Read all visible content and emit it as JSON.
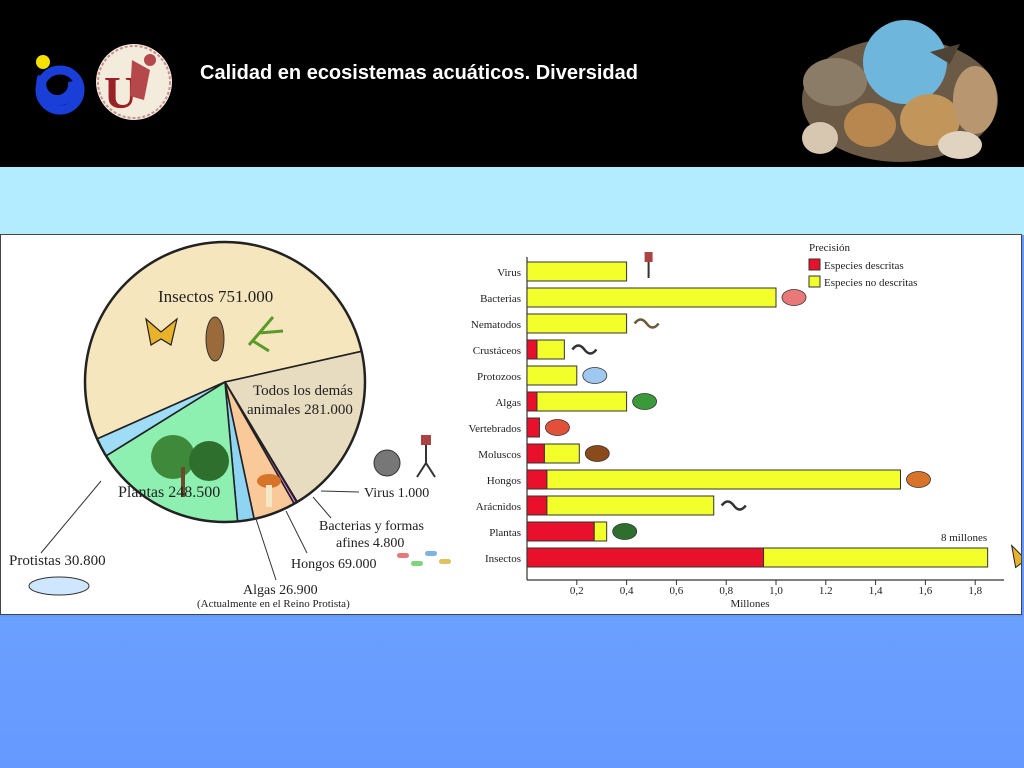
{
  "slide": {
    "title": "Calidad en ecosistemas acuáticos. Diversidad",
    "colors": {
      "header": "#000000",
      "band": "#b3ecff",
      "background": "#6699ff"
    },
    "logos": [
      "ub-logo-icon",
      "university-seal-icon"
    ],
    "banner": "animals-collage-icon"
  },
  "chart_data": [
    {
      "type": "pie",
      "slices": [
        {
          "label": "Insectos 751.000",
          "value": 751000,
          "color": "#f5e6bd"
        },
        {
          "label_lines": [
            "Todos los demás",
            "animales 281.000"
          ],
          "value": 281000,
          "color": "#e8dcc0"
        },
        {
          "label": "Virus 1.000",
          "value": 1000,
          "color": "#8b5bd6"
        },
        {
          "label_lines": [
            "Bacterias y formas",
            "afines 4.800"
          ],
          "value": 4800,
          "color": "#f082e8"
        },
        {
          "label": "Hongos 69.000",
          "value": 69000,
          "color": "#f9c99a"
        },
        {
          "label": "Algas 26.900",
          "note": "(Actualmente en el Reino Protista)",
          "value": 26900,
          "color": "#8fd4f2"
        },
        {
          "label": "Plantas 248.500",
          "value": 248500,
          "color": "#8ef0b0"
        },
        {
          "label": "Protistas 30.800",
          "value": 30800,
          "color": "#9fdcf5"
        }
      ]
    },
    {
      "type": "bar",
      "orientation": "horizontal",
      "stacked": true,
      "categories": [
        "Virus",
        "Bacterias",
        "Nematodos",
        "Crustáceos",
        "Protozoos",
        "Algas",
        "Vertebrados",
        "Moluscos",
        "Hongos",
        "Arácnidos",
        "Plantas",
        "Insectos"
      ],
      "series": [
        {
          "name": "Especies descritas",
          "color": "#e8102a",
          "values": [
            0.0,
            0.0,
            0.0,
            0.04,
            0.0,
            0.04,
            0.05,
            0.07,
            0.08,
            0.08,
            0.27,
            0.95
          ]
        },
        {
          "name": "Especies no descritas",
          "color": "#f2ff2a",
          "values": [
            0.4,
            1.0,
            0.4,
            0.11,
            0.2,
            0.36,
            0.0,
            0.14,
            1.42,
            0.67,
            0.05,
            0.9
          ]
        }
      ],
      "legend_title": "Precisión",
      "legend_position": "top-right",
      "xlabel": "Millones",
      "xlim": [
        0,
        1.9
      ],
      "xticks": [
        "0,2",
        "0,4",
        "0,6",
        "0,8",
        "1,0",
        "1.2",
        "1,4",
        "1,6",
        "1,8"
      ],
      "annotation": "8 millones",
      "icons": [
        "virus-icon",
        "bacteria-icon",
        "worm-icon",
        "lobster-icon",
        "protozoa-icon",
        "algae-icon",
        "fish-icon",
        "octopus-icon",
        "mushroom-icon",
        "spider-icon",
        "tree-icon",
        "butterfly-icon"
      ]
    }
  ]
}
